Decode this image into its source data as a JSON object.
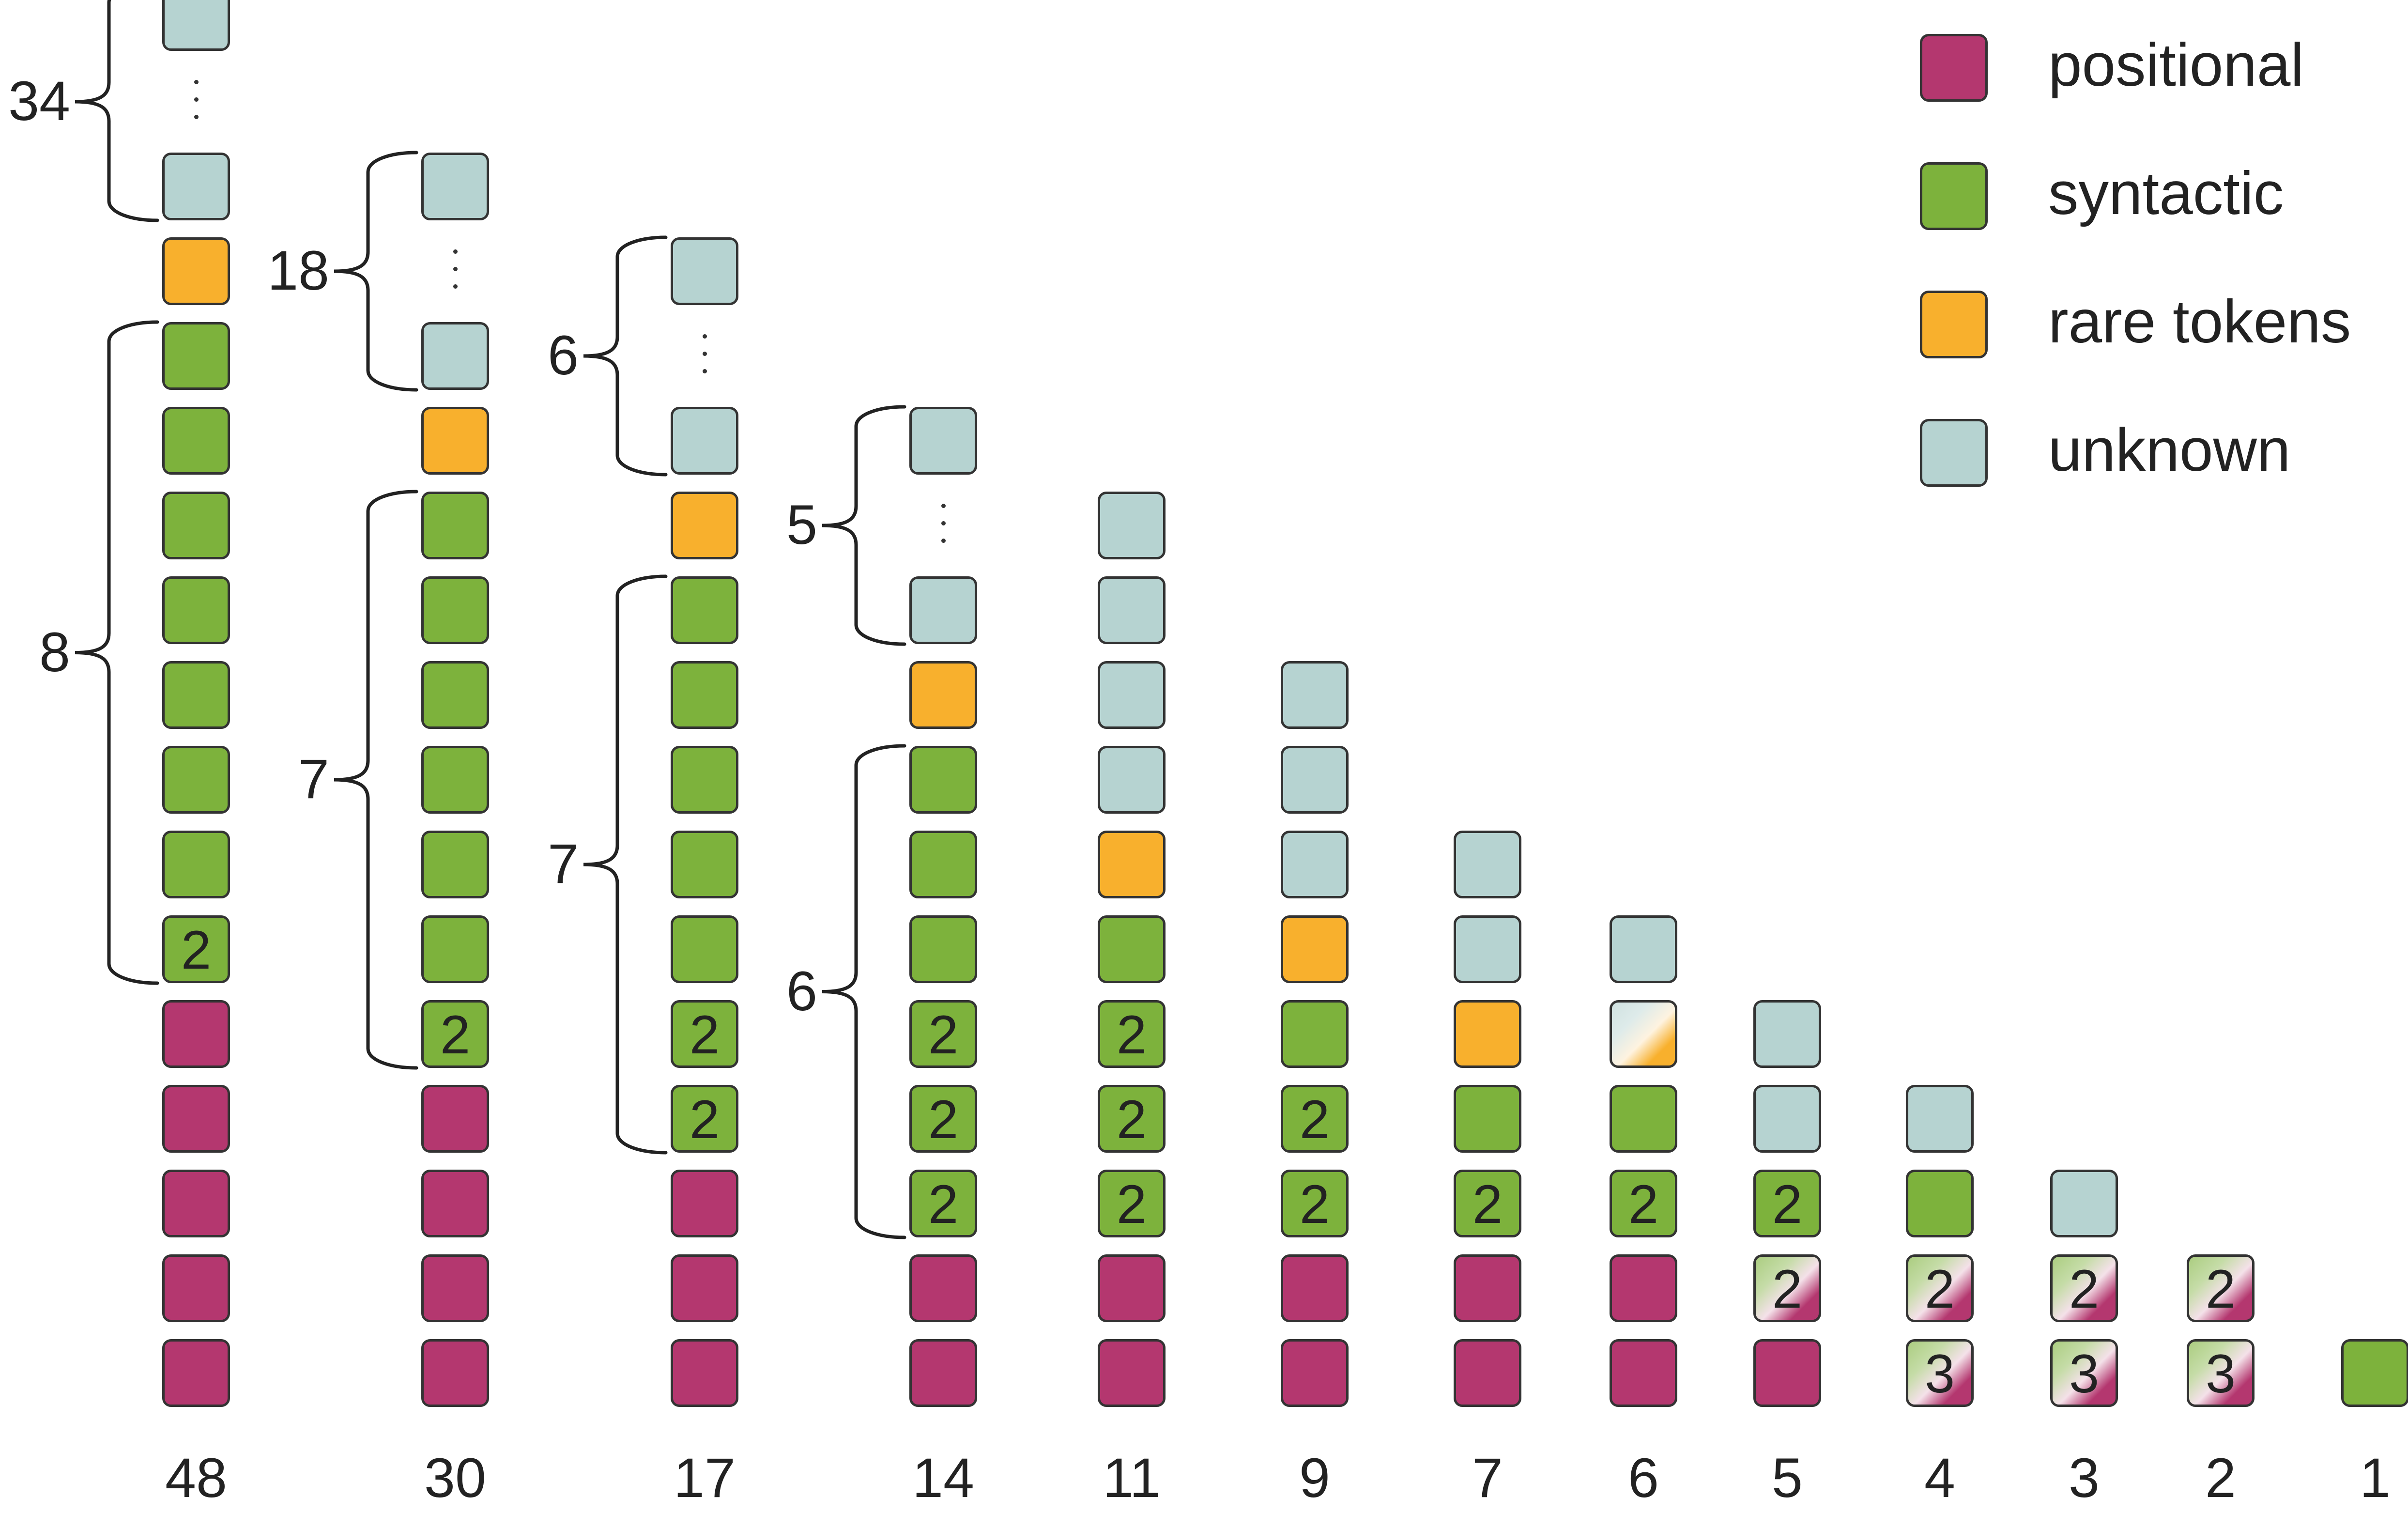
{
  "colors": {
    "positional": "#b4376f",
    "syntactic": "#7db23c",
    "rare_tokens": "#f8b02d",
    "unknown": "#b6d3d1"
  },
  "legend": [
    {
      "key": "positional",
      "label": "positional"
    },
    {
      "key": "syntactic",
      "label": "syntactic"
    },
    {
      "key": "rare_tokens",
      "label": "rare tokens"
    },
    {
      "key": "unknown",
      "label": "unknown"
    }
  ],
  "columns": [
    {
      "label": "48",
      "stack": [
        {
          "t": "positional"
        },
        {
          "t": "positional"
        },
        {
          "t": "positional"
        },
        {
          "t": "positional"
        },
        {
          "t": "positional"
        },
        {
          "t": "syntactic",
          "n": "2"
        },
        {
          "t": "syntactic"
        },
        {
          "t": "syntactic"
        },
        {
          "t": "syntactic"
        },
        {
          "t": "syntactic"
        },
        {
          "t": "syntactic"
        },
        {
          "t": "syntactic"
        },
        {
          "t": "syntactic"
        },
        {
          "t": "rare_tokens"
        },
        {
          "t": "unknown"
        },
        {
          "t": "dots"
        },
        {
          "t": "unknown"
        }
      ],
      "braces": [
        {
          "from": 5,
          "to": 12,
          "label": "8"
        },
        {
          "from": 14,
          "to": 16,
          "label": "34"
        }
      ]
    },
    {
      "label": "30",
      "stack": [
        {
          "t": "positional"
        },
        {
          "t": "positional"
        },
        {
          "t": "positional"
        },
        {
          "t": "positional"
        },
        {
          "t": "syntactic",
          "n": "2"
        },
        {
          "t": "syntactic"
        },
        {
          "t": "syntactic"
        },
        {
          "t": "syntactic"
        },
        {
          "t": "syntactic"
        },
        {
          "t": "syntactic"
        },
        {
          "t": "syntactic"
        },
        {
          "t": "rare_tokens"
        },
        {
          "t": "unknown"
        },
        {
          "t": "dots"
        },
        {
          "t": "unknown"
        }
      ],
      "braces": [
        {
          "from": 4,
          "to": 10,
          "label": "7"
        },
        {
          "from": 12,
          "to": 14,
          "label": "18"
        }
      ]
    },
    {
      "label": "17",
      "stack": [
        {
          "t": "positional"
        },
        {
          "t": "positional"
        },
        {
          "t": "positional"
        },
        {
          "t": "syntactic",
          "n": "2"
        },
        {
          "t": "syntactic",
          "n": "2"
        },
        {
          "t": "syntactic"
        },
        {
          "t": "syntactic"
        },
        {
          "t": "syntactic"
        },
        {
          "t": "syntactic"
        },
        {
          "t": "syntactic"
        },
        {
          "t": "rare_tokens"
        },
        {
          "t": "unknown"
        },
        {
          "t": "dots"
        },
        {
          "t": "unknown"
        }
      ],
      "braces": [
        {
          "from": 3,
          "to": 9,
          "label": "7"
        },
        {
          "from": 11,
          "to": 13,
          "label": "6"
        }
      ]
    },
    {
      "label": "14",
      "stack": [
        {
          "t": "positional"
        },
        {
          "t": "positional"
        },
        {
          "t": "syntactic",
          "n": "2"
        },
        {
          "t": "syntactic",
          "n": "2"
        },
        {
          "t": "syntactic",
          "n": "2"
        },
        {
          "t": "syntactic"
        },
        {
          "t": "syntactic"
        },
        {
          "t": "syntactic"
        },
        {
          "t": "rare_tokens"
        },
        {
          "t": "unknown"
        },
        {
          "t": "dots"
        },
        {
          "t": "unknown"
        }
      ],
      "braces": [
        {
          "from": 2,
          "to": 7,
          "label": "6"
        },
        {
          "from": 9,
          "to": 11,
          "label": "5"
        }
      ]
    },
    {
      "label": "11",
      "stack": [
        {
          "t": "positional"
        },
        {
          "t": "positional"
        },
        {
          "t": "syntactic",
          "n": "2"
        },
        {
          "t": "syntactic",
          "n": "2"
        },
        {
          "t": "syntactic",
          "n": "2"
        },
        {
          "t": "syntactic"
        },
        {
          "t": "rare_tokens"
        },
        {
          "t": "unknown"
        },
        {
          "t": "unknown"
        },
        {
          "t": "unknown"
        },
        {
          "t": "unknown"
        }
      ],
      "braces": []
    },
    {
      "label": "9",
      "stack": [
        {
          "t": "positional"
        },
        {
          "t": "positional"
        },
        {
          "t": "syntactic",
          "n": "2"
        },
        {
          "t": "syntactic",
          "n": "2"
        },
        {
          "t": "syntactic"
        },
        {
          "t": "rare_tokens"
        },
        {
          "t": "unknown"
        },
        {
          "t": "unknown"
        },
        {
          "t": "unknown"
        }
      ],
      "braces": []
    },
    {
      "label": "7",
      "stack": [
        {
          "t": "positional"
        },
        {
          "t": "positional"
        },
        {
          "t": "syntactic",
          "n": "2"
        },
        {
          "t": "syntactic"
        },
        {
          "t": "rare_tokens"
        },
        {
          "t": "unknown"
        },
        {
          "t": "unknown"
        }
      ],
      "braces": []
    },
    {
      "label": "6",
      "stack": [
        {
          "t": "positional"
        },
        {
          "t": "positional"
        },
        {
          "t": "syntactic",
          "n": "2"
        },
        {
          "t": "syntactic"
        },
        {
          "t": "mix",
          "a": "rare_tokens",
          "b": "unknown"
        },
        {
          "t": "unknown"
        }
      ],
      "braces": []
    },
    {
      "label": "5",
      "stack": [
        {
          "t": "positional"
        },
        {
          "t": "mix",
          "a": "positional",
          "b": "syntactic",
          "n": "2"
        },
        {
          "t": "syntactic",
          "n": "2"
        },
        {
          "t": "unknown"
        },
        {
          "t": "unknown"
        }
      ],
      "braces": []
    },
    {
      "label": "4",
      "stack": [
        {
          "t": "mix",
          "a": "positional",
          "b": "syntactic",
          "n": "3"
        },
        {
          "t": "mix",
          "a": "positional",
          "b": "syntactic",
          "n": "2"
        },
        {
          "t": "syntactic"
        },
        {
          "t": "unknown"
        }
      ],
      "braces": []
    },
    {
      "label": "3",
      "stack": [
        {
          "t": "mix",
          "a": "positional",
          "b": "syntactic",
          "n": "3"
        },
        {
          "t": "mix",
          "a": "positional",
          "b": "syntactic",
          "n": "2"
        },
        {
          "t": "unknown"
        }
      ],
      "braces": []
    },
    {
      "label": "2",
      "stack": [
        {
          "t": "mix",
          "a": "positional",
          "b": "syntactic",
          "n": "3"
        },
        {
          "t": "mix",
          "a": "positional",
          "b": "syntactic",
          "n": "2"
        }
      ],
      "braces": []
    },
    {
      "label": "1",
      "stack": [
        {
          "t": "syntactic"
        }
      ],
      "braces": []
    }
  ]
}
